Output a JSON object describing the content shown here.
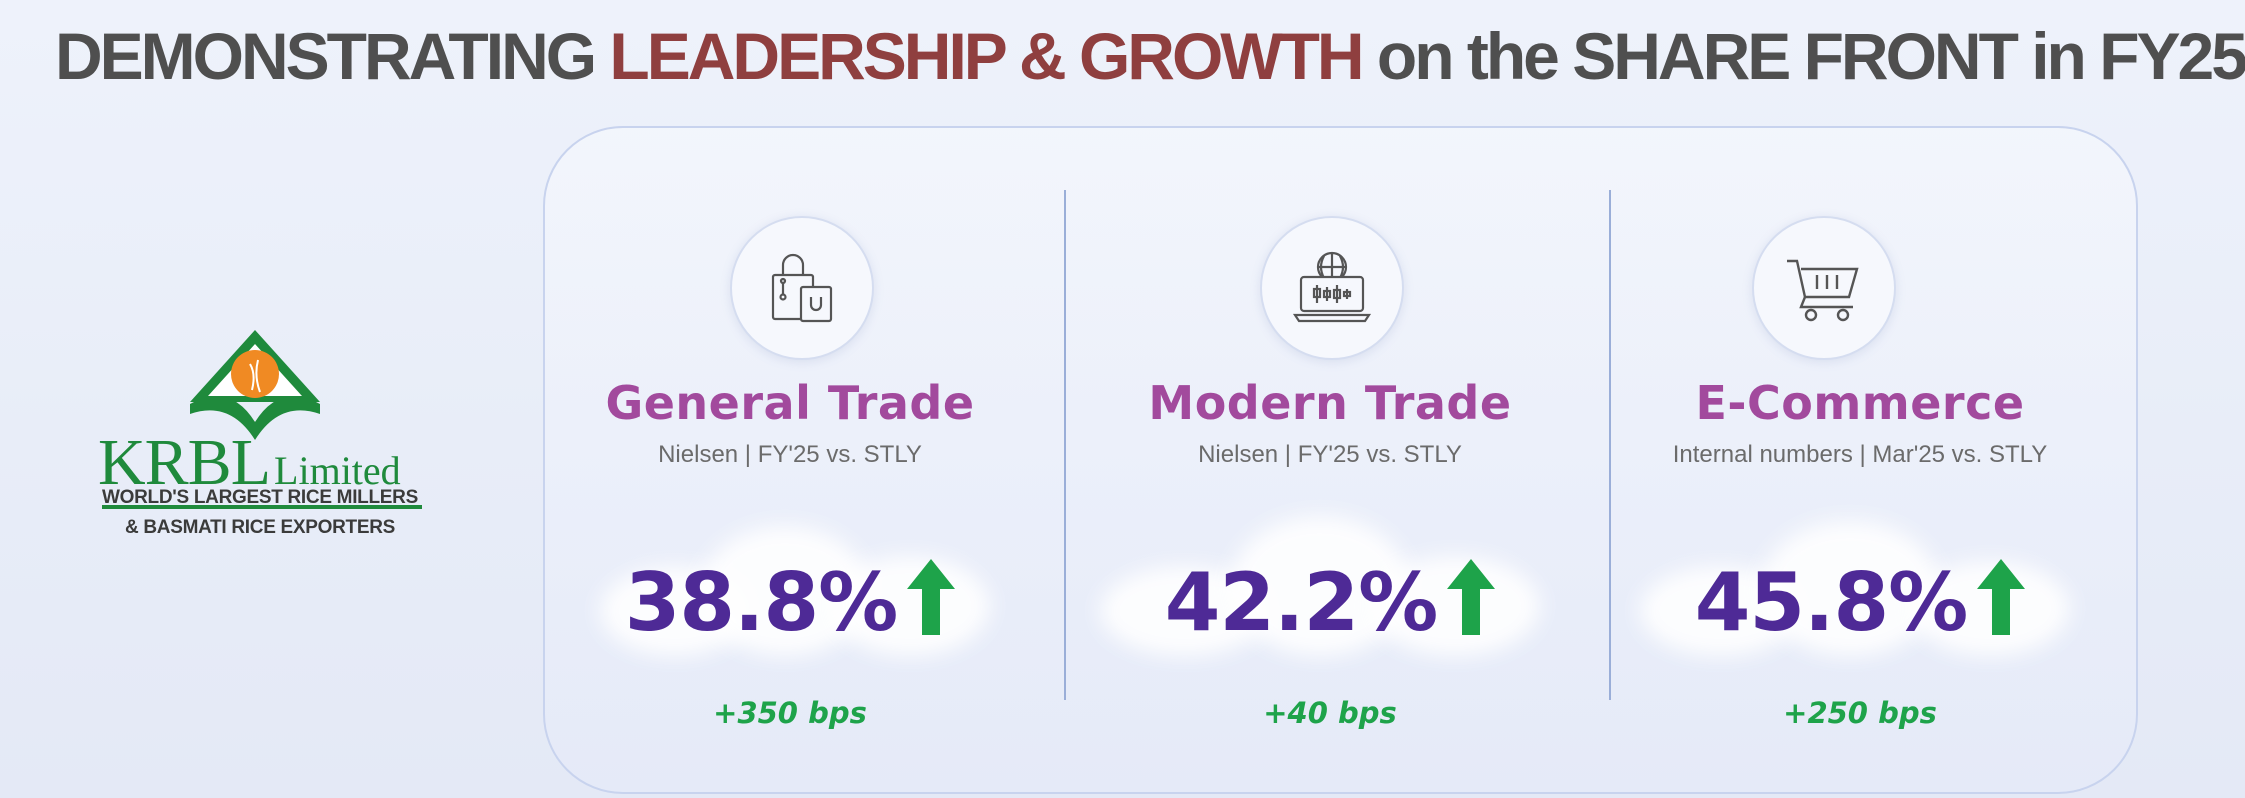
{
  "headline": {
    "part1": "DEMONSTRATING ",
    "accent": "LEADERSHIP & GROWTH",
    "part2": " on the SHARE FRONT in FY25",
    "accent_color": "#8f3f3f"
  },
  "logo": {
    "name": "KRBL",
    "suffix": "Limited",
    "tagline_1": "WORLD'S LARGEST RICE MILLERS",
    "tagline_2": "& BASMATI RICE EXPORTERS",
    "brand_color": "#1f8a3c"
  },
  "metrics": [
    {
      "icon": "shopping-bags-icon",
      "title": "General Trade",
      "subtitle": "Nielsen | FY'25 vs. STLY",
      "value": "38.8%",
      "trend": "up",
      "change": "+350 bps"
    },
    {
      "icon": "global-market-icon",
      "title": "Modern Trade",
      "subtitle": "Nielsen | FY'25 vs. STLY",
      "value": "42.2%",
      "trend": "up",
      "change": "+40 bps"
    },
    {
      "icon": "shopping-cart-icon",
      "title": "E-Commerce",
      "subtitle": "Internal numbers | Mar'25 vs. STLY",
      "value": "45.8%",
      "trend": "up",
      "change": "+250 bps"
    }
  ],
  "colors": {
    "title": "#a24a9d",
    "value": "#4e2a96",
    "positive": "#1ea34a"
  }
}
